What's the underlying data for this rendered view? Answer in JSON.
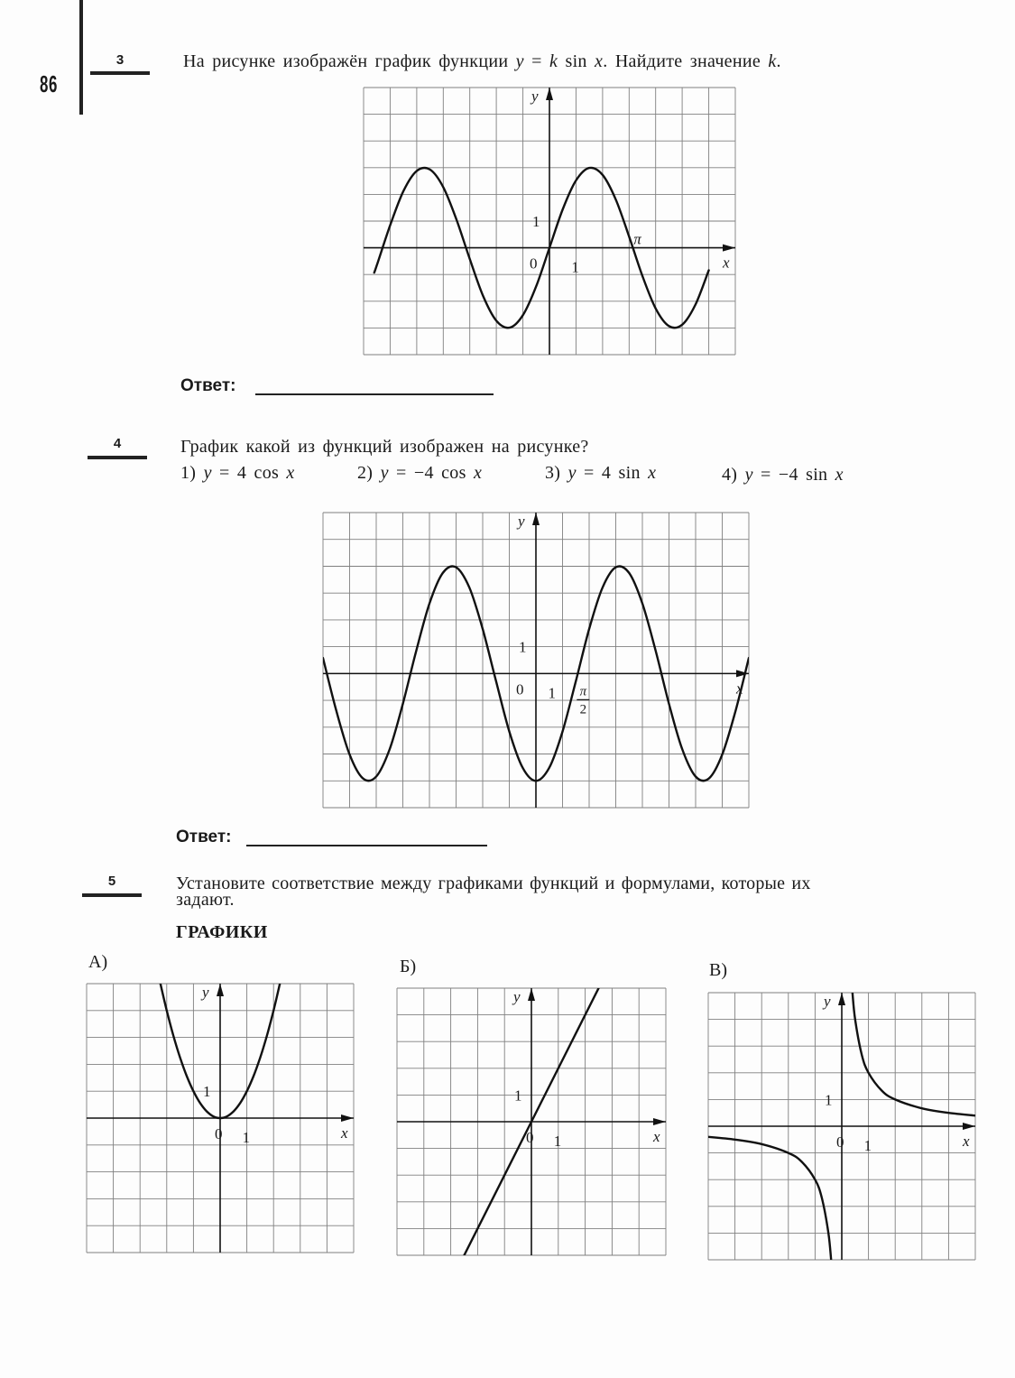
{
  "page": {
    "number": "86"
  },
  "task3": {
    "number": "3",
    "question": [
      {
        "t": "На рисунке изображён график функции "
      },
      {
        "t": "y",
        "i": true
      },
      {
        "t": " = "
      },
      {
        "t": "k",
        "i": true
      },
      {
        "t": " sin "
      },
      {
        "t": "x",
        "i": true
      },
      {
        "t": ". Найдите значение "
      },
      {
        "t": "k",
        "i": true
      },
      {
        "t": "."
      }
    ],
    "answer_label": "Ответ:"
  },
  "task4": {
    "number": "4",
    "question": [
      {
        "t": "График какой из функций изображен на рисунке?"
      }
    ],
    "options": [
      [
        {
          "t": "1) "
        },
        {
          "t": "y",
          "i": true
        },
        {
          "t": " = 4 cos "
        },
        {
          "t": "x",
          "i": true
        }
      ],
      [
        {
          "t": "2) "
        },
        {
          "t": "y",
          "i": true
        },
        {
          "t": " = −4 cos "
        },
        {
          "t": "x",
          "i": true
        }
      ],
      [
        {
          "t": "3) "
        },
        {
          "t": "y",
          "i": true
        },
        {
          "t": " = 4 sin "
        },
        {
          "t": "x",
          "i": true
        }
      ],
      [
        {
          "t": "4) "
        },
        {
          "t": "y",
          "i": true
        },
        {
          "t": " = −4 sin "
        },
        {
          "t": "x",
          "i": true
        }
      ]
    ],
    "answer_label": "Ответ:"
  },
  "task5": {
    "number": "5",
    "question_line1": [
      {
        "t": "Установите соответствие между графиками функций и формулами, которые их"
      }
    ],
    "question_line2": [
      {
        "t": "задают."
      }
    ],
    "heading": "ГРАФИКИ",
    "graph_labels": [
      "А)",
      "Б)",
      "В)"
    ]
  },
  "chart_data": [
    {
      "type": "line",
      "grid": true,
      "xlim": [
        -7,
        7
      ],
      "ylim": [
        -4,
        6
      ],
      "xlabel": "x",
      "ylabel": "y",
      "origin_label": "0",
      "x_tick_label": "1",
      "y_tick_label": "1",
      "special_label": "π",
      "series": [
        {
          "points": [
            [
              -6.6,
              -0.93
            ],
            [
              -6.5,
              -0.65
            ],
            [
              -6,
              0.84
            ],
            [
              -5.5,
              2.12
            ],
            [
              -5,
              2.88
            ],
            [
              -4.5,
              2.93
            ],
            [
              -4,
              2.27
            ],
            [
              -3.5,
              1.05
            ],
            [
              -3,
              -0.42
            ],
            [
              -2.5,
              -1.8
            ],
            [
              -2,
              -2.73
            ],
            [
              -1.5,
              -2.99
            ],
            [
              -1,
              -2.52
            ],
            [
              -0.5,
              -1.44
            ],
            [
              0,
              0
            ],
            [
              0.5,
              1.44
            ],
            [
              1,
              2.52
            ],
            [
              1.5,
              2.99
            ],
            [
              2,
              2.73
            ],
            [
              2.5,
              1.8
            ],
            [
              3,
              0.42
            ],
            [
              3.5,
              -1.05
            ],
            [
              4,
              -2.27
            ],
            [
              4.5,
              -2.93
            ],
            [
              5,
              -2.88
            ],
            [
              5.5,
              -2.12
            ],
            [
              6,
              -0.84
            ]
          ]
        }
      ]
    },
    {
      "type": "line",
      "grid": true,
      "xlim": [
        -8,
        8
      ],
      "ylim": [
        -5,
        6
      ],
      "xlabel": "x",
      "ylabel": "y",
      "origin_label": "0",
      "x_tick_label": "1",
      "y_tick_label": "1",
      "special_label": {
        "num": "π",
        "den": "2"
      },
      "series": [
        {
          "points": [
            [
              -8,
              0.58
            ],
            [
              -7.5,
              -1.39
            ],
            [
              -7,
              -3.02
            ],
            [
              -6.5,
              -3.91
            ],
            [
              -6,
              -3.84
            ],
            [
              -5.5,
              -2.83
            ],
            [
              -5,
              -1.13
            ],
            [
              -4.5,
              0.84
            ],
            [
              -4,
              2.61
            ],
            [
              -3.5,
              3.75
            ],
            [
              -3,
              3.96
            ],
            [
              -2.5,
              3.2
            ],
            [
              -2,
              1.66
            ],
            [
              -1.5,
              -0.28
            ],
            [
              -1,
              -2.16
            ],
            [
              -0.5,
              -3.51
            ],
            [
              0,
              -4
            ],
            [
              0.5,
              -3.51
            ],
            [
              1,
              -2.16
            ],
            [
              1.5,
              -0.28
            ],
            [
              2,
              1.66
            ],
            [
              2.5,
              3.2
            ],
            [
              3,
              3.96
            ],
            [
              3.5,
              3.75
            ],
            [
              4,
              2.61
            ],
            [
              4.5,
              0.84
            ],
            [
              5,
              -1.13
            ],
            [
              5.5,
              -2.83
            ],
            [
              6,
              -3.84
            ],
            [
              6.5,
              -3.91
            ],
            [
              7,
              -3.02
            ],
            [
              7.5,
              -1.39
            ],
            [
              8,
              0.58
            ]
          ]
        }
      ]
    },
    {
      "type": "line",
      "grid": true,
      "xlim": [
        -5,
        5
      ],
      "ylim": [
        -5,
        5
      ],
      "xlabel": "x",
      "ylabel": "y",
      "origin_label": "0",
      "x_tick_label": "1",
      "y_tick_label": "1",
      "series": [
        {
          "points": [
            [
              -2.25,
              5.06
            ],
            [
              -2,
              4
            ],
            [
              -1.75,
              3.06
            ],
            [
              -1.5,
              2.25
            ],
            [
              -1.25,
              1.56
            ],
            [
              -1,
              1
            ],
            [
              -0.75,
              0.56
            ],
            [
              -0.5,
              0.25
            ],
            [
              -0.25,
              0.06
            ],
            [
              0,
              0
            ],
            [
              0.25,
              0.06
            ],
            [
              0.5,
              0.25
            ],
            [
              0.75,
              0.56
            ],
            [
              1,
              1
            ],
            [
              1.25,
              1.56
            ],
            [
              1.5,
              2.25
            ],
            [
              1.75,
              3.06
            ],
            [
              2,
              4
            ],
            [
              2.25,
              5.06
            ]
          ]
        }
      ]
    },
    {
      "type": "line",
      "grid": true,
      "xlim": [
        -5,
        5
      ],
      "ylim": [
        -5,
        5
      ],
      "xlabel": "x",
      "ylabel": "y",
      "origin_label": "0",
      "x_tick_label": "1",
      "y_tick_label": "1",
      "series": [
        {
          "points": [
            [
              -2.55,
              -5.1
            ],
            [
              2.55,
              5.1
            ]
          ]
        }
      ]
    },
    {
      "type": "line",
      "grid": true,
      "xlim": [
        -5,
        5
      ],
      "ylim": [
        -5,
        5
      ],
      "xlabel": "x",
      "ylabel": "y",
      "origin_label": "0",
      "x_tick_label": "1",
      "y_tick_label": "1",
      "series": [
        {
          "points": [
            [
              0.4,
              5
            ],
            [
              0.5,
              4
            ],
            [
              0.75,
              2.67
            ],
            [
              1,
              2
            ],
            [
              1.5,
              1.33
            ],
            [
              2,
              1
            ],
            [
              3,
              0.67
            ],
            [
              4,
              0.5
            ],
            [
              5,
              0.4
            ]
          ]
        },
        {
          "points": [
            [
              -5,
              -0.4
            ],
            [
              -4,
              -0.5
            ],
            [
              -3,
              -0.67
            ],
            [
              -2,
              -1
            ],
            [
              -1.5,
              -1.33
            ],
            [
              -1,
              -2
            ],
            [
              -0.75,
              -2.67
            ],
            [
              -0.5,
              -4
            ],
            [
              -0.4,
              -5
            ]
          ]
        }
      ]
    }
  ]
}
